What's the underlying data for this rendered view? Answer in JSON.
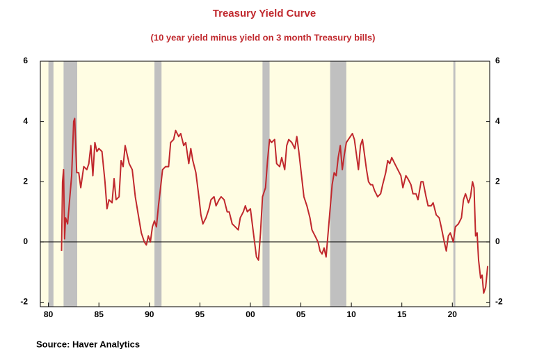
{
  "chart_data": {
    "type": "line",
    "title": "Treasury Yield Curve",
    "subtitle": "(10 year yield minus yield on 3 month Treasury bills)",
    "source": "Source:  Haver Analytics",
    "xlim": [
      1979.2,
      2023.7
    ],
    "ylim": [
      -2.15,
      6
    ],
    "y2lim": [
      -2.15,
      6
    ],
    "xticks": [
      {
        "value": 1980,
        "label": "80"
      },
      {
        "value": 1985,
        "label": "85"
      },
      {
        "value": 1990,
        "label": "90"
      },
      {
        "value": 1995,
        "label": "95"
      },
      {
        "value": 2000,
        "label": "00"
      },
      {
        "value": 2005,
        "label": "05"
      },
      {
        "value": 2010,
        "label": "10"
      },
      {
        "value": 2015,
        "label": "15"
      },
      {
        "value": 2020,
        "label": "20"
      }
    ],
    "yticks": [
      -2,
      0,
      2,
      4,
      6
    ],
    "y2ticks": [
      -2,
      0,
      2,
      4,
      6
    ],
    "recessions": [
      [
        1980.0,
        1980.5
      ],
      [
        1981.5,
        1982.85
      ],
      [
        1990.5,
        1991.2
      ],
      [
        2001.2,
        2001.9
      ],
      [
        2007.9,
        2009.5
      ],
      [
        2020.1,
        2020.3
      ]
    ],
    "recession_color": "#c0c0c0",
    "background": "#fffde3",
    "series": [
      {
        "color": "#c0282d",
        "x": [
          1981.3,
          1981.4,
          1981.5,
          1981.6,
          1981.7,
          1981.9,
          1982.1,
          1982.3,
          1982.5,
          1982.6,
          1982.8,
          1983.0,
          1983.2,
          1983.5,
          1983.8,
          1984.0,
          1984.2,
          1984.4,
          1984.6,
          1984.8,
          1985.0,
          1985.3,
          1985.6,
          1985.8,
          1986.0,
          1986.3,
          1986.5,
          1986.7,
          1987.0,
          1987.2,
          1987.4,
          1987.6,
          1987.8,
          1988.0,
          1988.3,
          1988.6,
          1988.9,
          1989.2,
          1989.5,
          1989.7,
          1989.9,
          1990.1,
          1990.3,
          1990.5,
          1990.7,
          1990.9,
          1991.1,
          1991.3,
          1991.6,
          1991.9,
          1992.1,
          1992.4,
          1992.6,
          1992.9,
          1993.1,
          1993.4,
          1993.6,
          1993.9,
          1994.1,
          1994.3,
          1994.6,
          1994.9,
          1995.1,
          1995.3,
          1995.6,
          1995.9,
          1996.1,
          1996.4,
          1996.6,
          1996.9,
          1997.1,
          1997.4,
          1997.7,
          1997.9,
          1998.2,
          1998.5,
          1998.8,
          1999.0,
          1999.3,
          1999.5,
          1999.7,
          2000.0,
          2000.3,
          2000.6,
          2000.8,
          2001.0,
          2001.2,
          2001.5,
          2001.7,
          2001.9,
          2002.1,
          2002.4,
          2002.6,
          2002.9,
          2003.1,
          2003.4,
          2003.6,
          2003.8,
          2004.1,
          2004.4,
          2004.6,
          2004.8,
          2005.0,
          2005.3,
          2005.6,
          2005.9,
          2006.1,
          2006.4,
          2006.7,
          2006.9,
          2007.1,
          2007.3,
          2007.5,
          2007.7,
          2007.9,
          2008.1,
          2008.3,
          2008.5,
          2008.7,
          2008.9,
          2009.1,
          2009.3,
          2009.5,
          2009.7,
          2009.9,
          2010.1,
          2010.3,
          2010.5,
          2010.7,
          2010.9,
          2011.1,
          2011.3,
          2011.5,
          2011.7,
          2011.9,
          2012.1,
          2012.3,
          2012.6,
          2012.9,
          2013.1,
          2013.4,
          2013.6,
          2013.8,
          2014.0,
          2014.3,
          2014.6,
          2014.9,
          2015.1,
          2015.4,
          2015.6,
          2015.9,
          2016.1,
          2016.4,
          2016.6,
          2016.9,
          2017.1,
          2017.4,
          2017.6,
          2017.9,
          2018.1,
          2018.4,
          2018.7,
          2018.9,
          2019.2,
          2019.4,
          2019.6,
          2019.8,
          2020.1,
          2020.3,
          2020.6,
          2020.9,
          2021.1,
          2021.3,
          2021.6,
          2021.8,
          2022.0,
          2022.15,
          2022.3,
          2022.45,
          2022.6,
          2022.8,
          2022.95,
          2023.1,
          2023.3,
          2023.5
        ],
        "values": [
          -0.3,
          2.0,
          2.4,
          0.1,
          0.8,
          0.6,
          1.4,
          2.2,
          4.0,
          4.1,
          2.3,
          2.3,
          1.8,
          2.5,
          2.4,
          2.6,
          3.2,
          2.2,
          3.3,
          3.0,
          3.1,
          3.0,
          2.0,
          1.1,
          1.4,
          1.3,
          2.1,
          1.4,
          1.5,
          2.7,
          2.5,
          3.2,
          2.9,
          2.6,
          2.4,
          1.5,
          0.9,
          0.3,
          0.0,
          -0.1,
          0.2,
          0.0,
          0.5,
          0.7,
          0.5,
          1.2,
          1.8,
          2.4,
          2.5,
          2.5,
          3.3,
          3.4,
          3.7,
          3.5,
          3.6,
          3.2,
          3.3,
          2.6,
          3.1,
          2.7,
          2.3,
          1.5,
          0.9,
          0.6,
          0.8,
          1.1,
          1.4,
          1.5,
          1.2,
          1.4,
          1.5,
          1.4,
          1.0,
          1.0,
          0.6,
          0.5,
          0.4,
          0.8,
          1.0,
          1.2,
          1.0,
          1.1,
          0.3,
          -0.5,
          -0.6,
          0.3,
          1.5,
          1.8,
          2.7,
          3.4,
          3.3,
          3.4,
          2.6,
          2.5,
          2.8,
          2.4,
          3.2,
          3.4,
          3.3,
          3.1,
          3.5,
          3.0,
          2.4,
          1.5,
          1.2,
          0.8,
          0.4,
          0.2,
          0.0,
          -0.3,
          -0.4,
          -0.2,
          -0.5,
          0.3,
          1.1,
          1.9,
          2.3,
          2.2,
          2.8,
          3.2,
          2.4,
          2.9,
          3.3,
          3.4,
          3.5,
          3.6,
          3.4,
          2.9,
          2.4,
          3.2,
          3.4,
          2.9,
          2.4,
          2.0,
          1.9,
          1.9,
          1.7,
          1.5,
          1.6,
          1.9,
          2.3,
          2.7,
          2.6,
          2.8,
          2.6,
          2.4,
          2.2,
          1.8,
          2.2,
          2.1,
          1.9,
          1.6,
          1.6,
          1.4,
          2.0,
          2.0,
          1.5,
          1.2,
          1.2,
          1.3,
          0.9,
          0.8,
          0.5,
          0.0,
          -0.3,
          0.2,
          0.3,
          0.0,
          0.5,
          0.6,
          0.8,
          1.4,
          1.6,
          1.3,
          1.5,
          2.0,
          1.8,
          0.2,
          0.3,
          -0.6,
          -1.2,
          -1.1,
          -1.7,
          -1.5,
          -0.8
        ]
      }
    ]
  }
}
